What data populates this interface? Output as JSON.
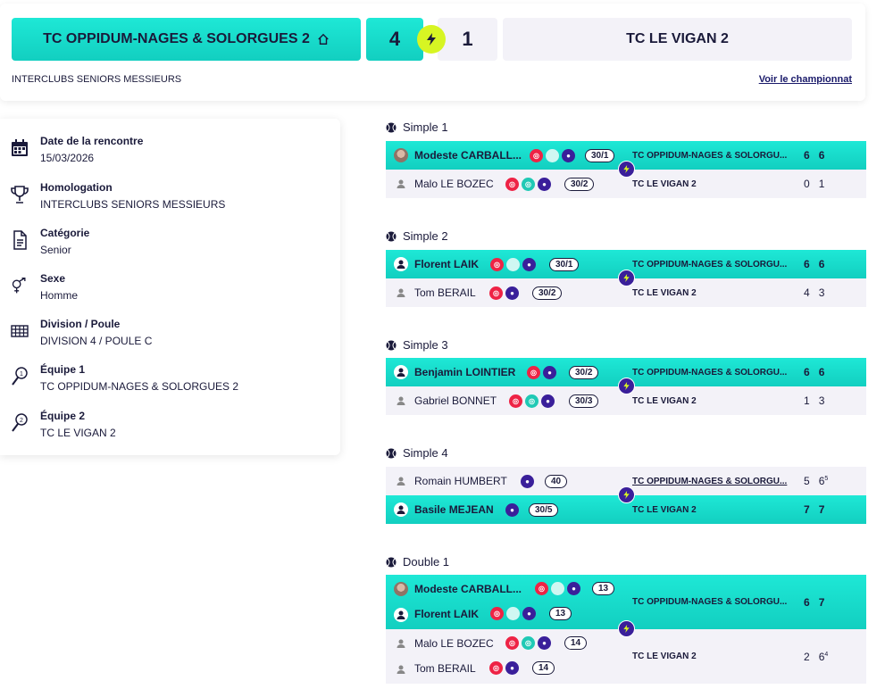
{
  "header": {
    "home_team": "TC OPPIDUM-NAGES & SOLORGUES 2",
    "away_team": "TC LE VIGAN 2",
    "home_score": "4",
    "away_score": "1",
    "competition": "INTERCLUBS SENIORS MESSIEURS",
    "link": "Voir le championnat"
  },
  "info": {
    "date": {
      "label": "Date de la rencontre",
      "value": "15/03/2026"
    },
    "homologation": {
      "label": "Homologation",
      "value": "INTERCLUBS SENIORS MESSIEURS"
    },
    "categorie": {
      "label": "Catégorie",
      "value": "Senior"
    },
    "sexe": {
      "label": "Sexe",
      "value": "Homme"
    },
    "division": {
      "label": "Division / Poule",
      "value": "DIVISION 4 / POULE C"
    },
    "equipe1": {
      "label": "Équipe 1",
      "value": "TC OPPIDUM-NAGES & SOLORGUES 2"
    },
    "equipe2": {
      "label": "Équipe 2",
      "value": "TC LE VIGAN 2"
    }
  },
  "matches": {
    "s1": {
      "title": "Simple 1",
      "p1": {
        "name": "Modeste CARBALL...",
        "rank": "30/1",
        "team": "TC OPPIDUM-NAGES & SOLORGU...",
        "set1": "6",
        "set2": "6"
      },
      "p2": {
        "name": "Malo LE BOZEC",
        "rank": "30/2",
        "team": "TC LE VIGAN 2",
        "set1": "0",
        "set2": "1"
      }
    },
    "s2": {
      "title": "Simple 2",
      "p1": {
        "name": "Florent LAIK",
        "rank": "30/1",
        "team": "TC OPPIDUM-NAGES & SOLORGU...",
        "set1": "6",
        "set2": "6"
      },
      "p2": {
        "name": "Tom BERAIL",
        "rank": "30/2",
        "team": "TC LE VIGAN 2",
        "set1": "4",
        "set2": "3"
      }
    },
    "s3": {
      "title": "Simple 3",
      "p1": {
        "name": "Benjamin LOINTIER",
        "rank": "30/2",
        "team": "TC OPPIDUM-NAGES & SOLORGU...",
        "set1": "6",
        "set2": "6"
      },
      "p2": {
        "name": "Gabriel BONNET",
        "rank": "30/3",
        "team": "TC LE VIGAN 2",
        "set1": "1",
        "set2": "3"
      }
    },
    "s4": {
      "title": "Simple 4",
      "p1": {
        "name": "Romain HUMBERT",
        "rank": "40",
        "team": "TC OPPIDUM-NAGES & SOLORGU...",
        "set1": "5",
        "set2": "6",
        "set2_tb": "5"
      },
      "p2": {
        "name": "Basile MEJEAN",
        "rank": "30/5",
        "team": "TC LE VIGAN 2",
        "set1": "7",
        "set2": "7"
      }
    },
    "d1": {
      "title": "Double 1",
      "p1a": {
        "name": "Modeste CARBALL...",
        "rank": "13"
      },
      "p1b": {
        "name": "Florent LAIK",
        "rank": "13"
      },
      "team1": "TC OPPIDUM-NAGES & SOLORGU...",
      "t1set1": "6",
      "t1set2": "7",
      "p2a": {
        "name": "Malo LE BOZEC",
        "rank": "14"
      },
      "p2b": {
        "name": "Tom BERAIL",
        "rank": "14"
      },
      "team2": "TC LE VIGAN 2",
      "t2set1": "2",
      "t2set2": "6",
      "t2set2_tb": "4"
    }
  }
}
